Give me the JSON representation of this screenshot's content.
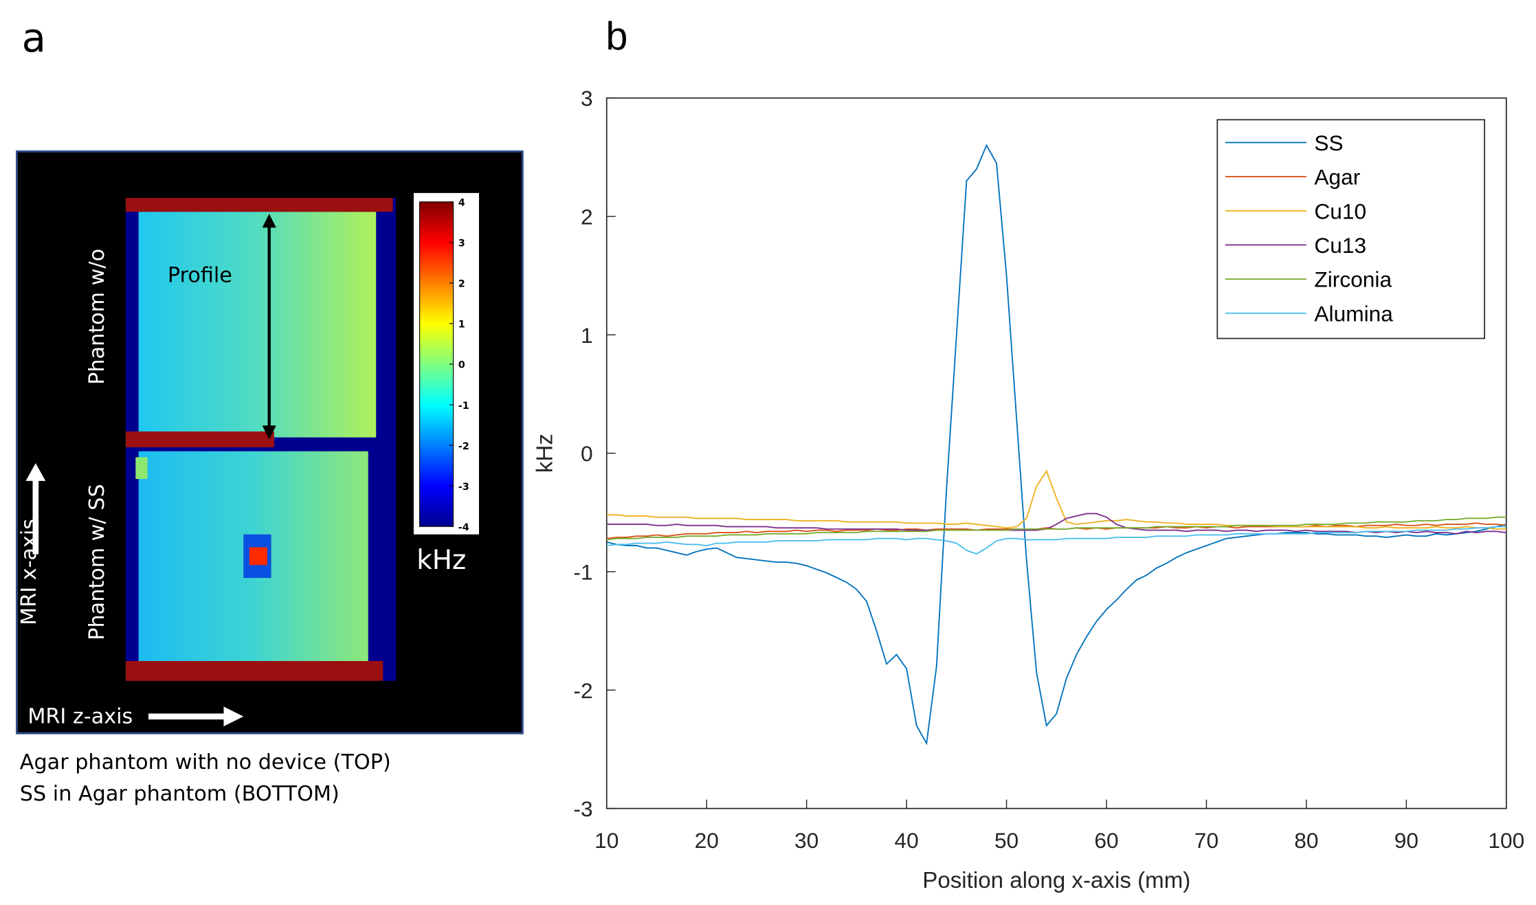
{
  "chart_data": [
    {
      "type": "image",
      "panel_label": "a",
      "annotations": [
        "Profile",
        "Phantom w/o",
        "Phantom w/ SS",
        "MRI x-axis",
        "MRI z-axis"
      ],
      "colorbar": {
        "label": "kHz",
        "lim": [
          -4,
          4
        ],
        "ticks": [
          4,
          3,
          2,
          1,
          0,
          -1,
          -2,
          -3,
          -4
        ]
      },
      "caption": [
        "Agar phantom with no device (TOP)",
        "SS in Agar phantom (BOTTOM)"
      ]
    },
    {
      "type": "line",
      "panel_label": "b",
      "xlabel": "Position along x-axis (mm)",
      "ylabel": "kHz",
      "xlim": [
        10,
        100
      ],
      "ylim": [
        -3,
        3
      ],
      "xticks": [
        10,
        20,
        30,
        40,
        50,
        60,
        70,
        80,
        90,
        100
      ],
      "yticks": [
        -3,
        -2,
        -1,
        0,
        1,
        2,
        3
      ],
      "grid": false,
      "legend": "upper right",
      "x": [
        10,
        11,
        12,
        13,
        14,
        15,
        16,
        17,
        18,
        19,
        20,
        21,
        22,
        23,
        24,
        25,
        26,
        27,
        28,
        29,
        30,
        31,
        32,
        33,
        34,
        35,
        36,
        37,
        38,
        39,
        40,
        41,
        42,
        43,
        44,
        45,
        46,
        47,
        48,
        49,
        50,
        51,
        52,
        53,
        54,
        55,
        56,
        57,
        58,
        59,
        60,
        61,
        62,
        63,
        64,
        65,
        66,
        67,
        68,
        69,
        70,
        71,
        72,
        73,
        74,
        75,
        76,
        77,
        78,
        79,
        80,
        81,
        82,
        83,
        84,
        85,
        86,
        87,
        88,
        89,
        90,
        91,
        92,
        93,
        94,
        95,
        96,
        97,
        98,
        99,
        100
      ],
      "series": [
        {
          "name": "SS",
          "color": "#0072BD",
          "values": [
            -0.75,
            -0.77,
            -0.78,
            -0.78,
            -0.8,
            -0.8,
            -0.82,
            -0.84,
            -0.86,
            -0.83,
            -0.81,
            -0.8,
            -0.84,
            -0.88,
            -0.89,
            -0.9,
            -0.91,
            -0.92,
            -0.92,
            -0.93,
            -0.95,
            -0.98,
            -1.01,
            -1.05,
            -1.09,
            -1.15,
            -1.25,
            -1.5,
            -1.78,
            -1.7,
            -1.82,
            -2.3,
            -2.45,
            -1.8,
            -0.3,
            1.0,
            2.3,
            2.4,
            2.6,
            2.45,
            1.5,
            0.3,
            -0.9,
            -1.85,
            -2.3,
            -2.2,
            -1.9,
            -1.7,
            -1.55,
            -1.42,
            -1.32,
            -1.24,
            -1.15,
            -1.07,
            -1.03,
            -0.97,
            -0.93,
            -0.88,
            -0.84,
            -0.81,
            -0.78,
            -0.75,
            -0.72,
            -0.71,
            -0.7,
            -0.69,
            -0.68,
            -0.68,
            -0.67,
            -0.67,
            -0.67,
            -0.68,
            -0.68,
            -0.69,
            -0.69,
            -0.69,
            -0.7,
            -0.7,
            -0.71,
            -0.7,
            -0.69,
            -0.7,
            -0.7,
            -0.68,
            -0.69,
            -0.68,
            -0.67,
            -0.66,
            -0.64,
            -0.62,
            -0.6
          ]
        },
        {
          "name": "Agar",
          "color": "#D95319",
          "values": [
            -0.72,
            -0.71,
            -0.71,
            -0.7,
            -0.7,
            -0.69,
            -0.7,
            -0.69,
            -0.68,
            -0.68,
            -0.68,
            -0.67,
            -0.67,
            -0.67,
            -0.66,
            -0.67,
            -0.66,
            -0.66,
            -0.66,
            -0.65,
            -0.66,
            -0.65,
            -0.65,
            -0.66,
            -0.65,
            -0.65,
            -0.65,
            -0.64,
            -0.65,
            -0.65,
            -0.64,
            -0.64,
            -0.65,
            -0.64,
            -0.64,
            -0.64,
            -0.64,
            -0.65,
            -0.64,
            -0.64,
            -0.64,
            -0.64,
            -0.64,
            -0.64,
            -0.63,
            -0.64,
            -0.64,
            -0.63,
            -0.64,
            -0.63,
            -0.64,
            -0.63,
            -0.63,
            -0.63,
            -0.63,
            -0.63,
            -0.62,
            -0.63,
            -0.63,
            -0.62,
            -0.63,
            -0.62,
            -0.62,
            -0.63,
            -0.62,
            -0.62,
            -0.62,
            -0.62,
            -0.61,
            -0.62,
            -0.62,
            -0.61,
            -0.62,
            -0.61,
            -0.61,
            -0.62,
            -0.61,
            -0.61,
            -0.61,
            -0.6,
            -0.61,
            -0.61,
            -0.6,
            -0.61,
            -0.6,
            -0.6,
            -0.6,
            -0.59,
            -0.6,
            -0.6,
            -0.61
          ]
        },
        {
          "name": "Cu10",
          "color": "#EDB120",
          "values": [
            -0.52,
            -0.52,
            -0.53,
            -0.53,
            -0.53,
            -0.54,
            -0.54,
            -0.54,
            -0.54,
            -0.55,
            -0.55,
            -0.55,
            -0.55,
            -0.55,
            -0.56,
            -0.56,
            -0.56,
            -0.56,
            -0.56,
            -0.57,
            -0.57,
            -0.57,
            -0.57,
            -0.57,
            -0.58,
            -0.58,
            -0.58,
            -0.58,
            -0.58,
            -0.58,
            -0.59,
            -0.59,
            -0.59,
            -0.59,
            -0.6,
            -0.6,
            -0.59,
            -0.6,
            -0.61,
            -0.62,
            -0.63,
            -0.62,
            -0.55,
            -0.28,
            -0.15,
            -0.38,
            -0.58,
            -0.6,
            -0.59,
            -0.58,
            -0.57,
            -0.57,
            -0.56,
            -0.57,
            -0.58,
            -0.58,
            -0.59,
            -0.59,
            -0.6,
            -0.6,
            -0.6,
            -0.6,
            -0.61,
            -0.61,
            -0.61,
            -0.61,
            -0.61,
            -0.62,
            -0.62,
            -0.62,
            -0.62,
            -0.62,
            -0.62,
            -0.62,
            -0.62,
            -0.62,
            -0.63,
            -0.63,
            -0.62,
            -0.63,
            -0.63,
            -0.63,
            -0.63,
            -0.62,
            -0.63,
            -0.63,
            -0.62,
            -0.63,
            -0.63,
            -0.64,
            -0.64
          ]
        },
        {
          "name": "Cu13",
          "color": "#7E2F8E",
          "values": [
            -0.6,
            -0.6,
            -0.6,
            -0.6,
            -0.6,
            -0.61,
            -0.61,
            -0.6,
            -0.61,
            -0.61,
            -0.61,
            -0.61,
            -0.62,
            -0.62,
            -0.62,
            -0.62,
            -0.62,
            -0.63,
            -0.63,
            -0.63,
            -0.63,
            -0.63,
            -0.64,
            -0.64,
            -0.64,
            -0.64,
            -0.64,
            -0.64,
            -0.64,
            -0.64,
            -0.65,
            -0.65,
            -0.65,
            -0.65,
            -0.65,
            -0.65,
            -0.65,
            -0.65,
            -0.65,
            -0.65,
            -0.65,
            -0.65,
            -0.65,
            -0.65,
            -0.64,
            -0.6,
            -0.55,
            -0.53,
            -0.51,
            -0.51,
            -0.54,
            -0.6,
            -0.63,
            -0.64,
            -0.65,
            -0.65,
            -0.65,
            -0.65,
            -0.66,
            -0.65,
            -0.65,
            -0.65,
            -0.66,
            -0.65,
            -0.65,
            -0.66,
            -0.65,
            -0.65,
            -0.65,
            -0.66,
            -0.65,
            -0.66,
            -0.66,
            -0.66,
            -0.66,
            -0.67,
            -0.66,
            -0.67,
            -0.66,
            -0.67,
            -0.66,
            -0.67,
            -0.66,
            -0.67,
            -0.67,
            -0.68,
            -0.66,
            -0.67,
            -0.66,
            -0.66,
            -0.67
          ]
        },
        {
          "name": "Zirconia",
          "color": "#77AC30",
          "values": [
            -0.73,
            -0.72,
            -0.72,
            -0.72,
            -0.71,
            -0.71,
            -0.71,
            -0.71,
            -0.7,
            -0.7,
            -0.7,
            -0.7,
            -0.69,
            -0.69,
            -0.69,
            -0.69,
            -0.68,
            -0.68,
            -0.68,
            -0.68,
            -0.68,
            -0.67,
            -0.67,
            -0.67,
            -0.67,
            -0.67,
            -0.66,
            -0.66,
            -0.66,
            -0.66,
            -0.66,
            -0.66,
            -0.66,
            -0.65,
            -0.65,
            -0.65,
            -0.65,
            -0.65,
            -0.65,
            -0.65,
            -0.65,
            -0.64,
            -0.64,
            -0.64,
            -0.64,
            -0.64,
            -0.64,
            -0.63,
            -0.63,
            -0.63,
            -0.63,
            -0.63,
            -0.63,
            -0.63,
            -0.63,
            -0.62,
            -0.62,
            -0.62,
            -0.62,
            -0.62,
            -0.62,
            -0.62,
            -0.62,
            -0.61,
            -0.61,
            -0.61,
            -0.61,
            -0.61,
            -0.61,
            -0.61,
            -0.6,
            -0.6,
            -0.6,
            -0.6,
            -0.59,
            -0.59,
            -0.59,
            -0.58,
            -0.58,
            -0.58,
            -0.58,
            -0.57,
            -0.57,
            -0.57,
            -0.56,
            -0.56,
            -0.55,
            -0.55,
            -0.55,
            -0.54,
            -0.54
          ]
        },
        {
          "name": "Alumina",
          "color": "#4DBEEE",
          "values": [
            -0.78,
            -0.77,
            -0.77,
            -0.76,
            -0.76,
            -0.76,
            -0.75,
            -0.76,
            -0.77,
            -0.77,
            -0.78,
            -0.76,
            -0.76,
            -0.75,
            -0.75,
            -0.75,
            -0.75,
            -0.74,
            -0.74,
            -0.74,
            -0.74,
            -0.74,
            -0.73,
            -0.73,
            -0.73,
            -0.73,
            -0.73,
            -0.72,
            -0.72,
            -0.72,
            -0.73,
            -0.72,
            -0.72,
            -0.73,
            -0.74,
            -0.76,
            -0.82,
            -0.85,
            -0.8,
            -0.74,
            -0.72,
            -0.72,
            -0.73,
            -0.73,
            -0.73,
            -0.73,
            -0.72,
            -0.72,
            -0.72,
            -0.72,
            -0.72,
            -0.71,
            -0.71,
            -0.71,
            -0.71,
            -0.7,
            -0.7,
            -0.7,
            -0.7,
            -0.69,
            -0.69,
            -0.69,
            -0.69,
            -0.68,
            -0.68,
            -0.68,
            -0.68,
            -0.68,
            -0.68,
            -0.68,
            -0.68,
            -0.67,
            -0.67,
            -0.67,
            -0.67,
            -0.67,
            -0.66,
            -0.66,
            -0.66,
            -0.66,
            -0.66,
            -0.65,
            -0.65,
            -0.65,
            -0.65,
            -0.64,
            -0.64,
            -0.63,
            -0.63,
            -0.62,
            -0.62
          ]
        }
      ]
    }
  ]
}
